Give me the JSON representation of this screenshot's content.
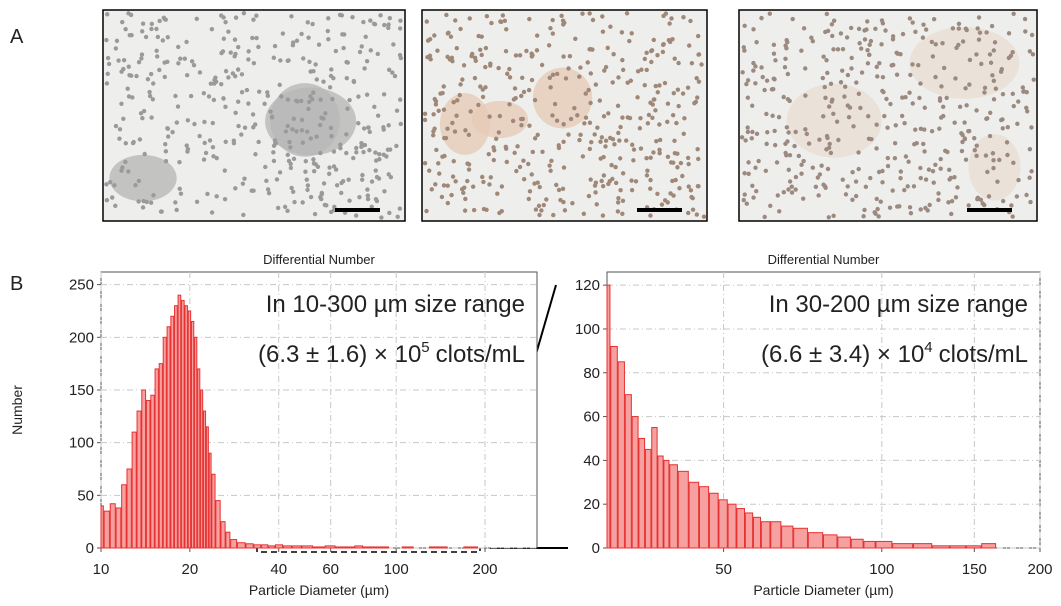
{
  "panel_labels": {
    "a": "A",
    "b": "B"
  },
  "chart_data": [
    {
      "type": "bar",
      "title": "Differential Number",
      "xlabel": "Particle Diameter (µm)",
      "ylabel": "Number",
      "log_x": true,
      "grid": true,
      "color": "#e83030",
      "annotations": [
        "In 10-300 µm size range",
        "(6.3 ± 1.6) × 10",
        "5",
        "clots/mL"
      ],
      "xlim": [
        10,
        300
      ],
      "xticks": [
        10,
        20,
        40,
        60,
        100,
        200
      ],
      "ylim": [
        0,
        262
      ],
      "yticks": [
        0,
        50,
        100,
        150,
        200,
        250
      ],
      "x": [
        10,
        10.5,
        11,
        11.5,
        12,
        12.5,
        13,
        13.5,
        14,
        14.5,
        15,
        15.5,
        16,
        16.5,
        17,
        17.5,
        18,
        18.5,
        19,
        19.5,
        20,
        20.5,
        21,
        21.5,
        22,
        22.5,
        23,
        23.5,
        24,
        25,
        26,
        27,
        28,
        30,
        32,
        34,
        36,
        38,
        40,
        43,
        46,
        50,
        55,
        60,
        65,
        70,
        75,
        80,
        90,
        100,
        110,
        120,
        140,
        160,
        180,
        200
      ],
      "values": [
        40,
        35,
        42,
        38,
        60,
        75,
        110,
        130,
        150,
        140,
        145,
        170,
        175,
        200,
        210,
        220,
        230,
        240,
        235,
        230,
        225,
        215,
        200,
        170,
        150,
        130,
        115,
        90,
        70,
        45,
        25,
        15,
        8,
        5,
        4,
        3,
        3,
        2,
        3,
        2,
        2,
        2,
        1,
        2,
        1,
        1,
        2,
        1,
        1,
        0,
        1,
        0,
        1,
        0,
        1,
        0
      ]
    },
    {
      "type": "bar",
      "title": "Differential Number",
      "xlabel": "Particle Diameter (µm)",
      "log_x": true,
      "grid": true,
      "color": "#e83030",
      "annotations": [
        "In 30-200 µm size range",
        "(6.6 ± 3.4) × 10",
        "4",
        "clots/mL"
      ],
      "xlim": [
        30,
        200
      ],
      "xticks": [
        50,
        100,
        150,
        200
      ],
      "ylim": [
        0,
        126
      ],
      "yticks": [
        0,
        20,
        40,
        60,
        80,
        100,
        120
      ],
      "x": [
        30,
        31,
        32,
        33,
        34,
        35,
        36,
        37,
        38,
        39,
        40,
        42,
        44,
        46,
        48,
        50,
        52,
        54,
        56,
        58,
        60,
        63,
        66,
        70,
        75,
        80,
        85,
        90,
        95,
        100,
        110,
        120,
        130,
        140,
        150,
        160
      ],
      "values": [
        120,
        92,
        85,
        70,
        60,
        50,
        45,
        55,
        42,
        40,
        38,
        35,
        30,
        28,
        25,
        22,
        20,
        18,
        16,
        14,
        12,
        12,
        10,
        9,
        7,
        6,
        5,
        4,
        3,
        3,
        2,
        2,
        1,
        1,
        1,
        2
      ]
    }
  ]
}
